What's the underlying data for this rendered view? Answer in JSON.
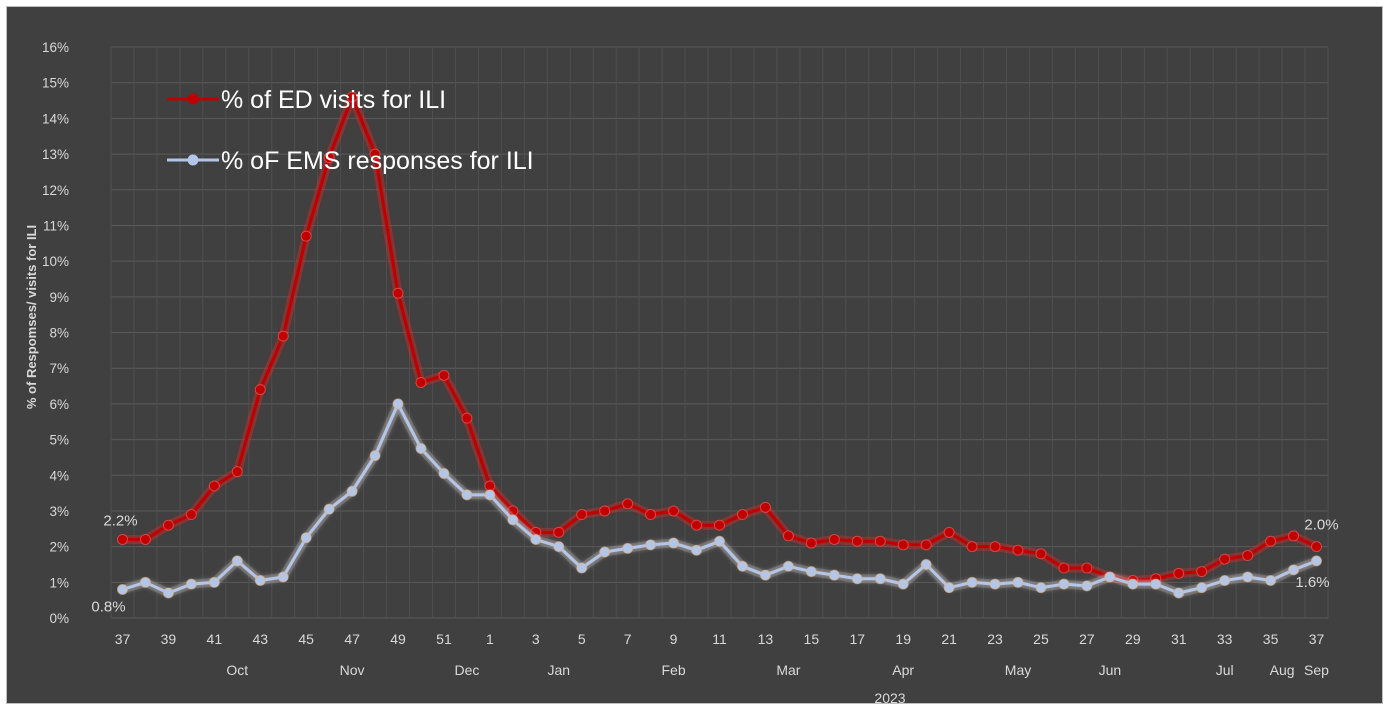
{
  "chart_data": {
    "type": "line",
    "title": "",
    "ylabel": "% of Respomses/ visits for ILI",
    "year_label": "2023",
    "ylim": [
      0,
      16
    ],
    "y_ticks": [
      "0%",
      "1%",
      "2%",
      "3%",
      "4%",
      "5%",
      "6%",
      "7%",
      "8%",
      "9%",
      "10%",
      "11%",
      "12%",
      "13%",
      "14%",
      "15%",
      "16%"
    ],
    "grid": true,
    "legend_placement": "top-left",
    "x": [
      37,
      38,
      39,
      40,
      41,
      42,
      43,
      44,
      45,
      46,
      47,
      48,
      49,
      50,
      51,
      52,
      1,
      2,
      3,
      4,
      5,
      6,
      7,
      8,
      9,
      10,
      11,
      12,
      13,
      14,
      15,
      16,
      17,
      18,
      19,
      20,
      21,
      22,
      23,
      24,
      25,
      26,
      27,
      28,
      29,
      30,
      31,
      32,
      33,
      34,
      35,
      36,
      37
    ],
    "x_tick_labels": [
      "37",
      "39",
      "41",
      "43",
      "45",
      "47",
      "49",
      "51",
      "1",
      "3",
      "5",
      "7",
      "9",
      "11",
      "13",
      "15",
      "17",
      "19",
      "21",
      "23",
      "25",
      "27",
      "29",
      "31",
      "33",
      "35",
      "37"
    ],
    "months": [
      {
        "label": "Oct",
        "at": 5
      },
      {
        "label": "Nov",
        "at": 10
      },
      {
        "label": "Dec",
        "at": 15
      },
      {
        "label": "Jan",
        "at": 19
      },
      {
        "label": "Feb",
        "at": 24
      },
      {
        "label": "Mar",
        "at": 29
      },
      {
        "label": "Apr",
        "at": 34
      },
      {
        "label": "May",
        "at": 39
      },
      {
        "label": "Jun",
        "at": 43
      },
      {
        "label": "Jul",
        "at": 48
      },
      {
        "label": "Aug",
        "at": 50.5
      },
      {
        "label": "Sep",
        "at": 52
      }
    ],
    "series": [
      {
        "name": "% of ED visits for ILI",
        "color": "#c00000",
        "glow": "#ff6666",
        "values": [
          2.2,
          2.2,
          2.6,
          2.9,
          3.7,
          4.1,
          6.4,
          7.9,
          10.7,
          12.9,
          14.6,
          13.0,
          9.1,
          6.6,
          6.8,
          5.6,
          3.7,
          3.0,
          2.4,
          2.4,
          2.9,
          3.0,
          3.2,
          2.9,
          3.0,
          2.6,
          2.6,
          2.9,
          3.1,
          2.3,
          2.1,
          2.2,
          2.15,
          2.15,
          2.05,
          2.05,
          2.4,
          2.0,
          2.0,
          1.9,
          1.8,
          1.4,
          1.4,
          1.15,
          1.05,
          1.1,
          1.25,
          1.3,
          1.65,
          1.75,
          2.15,
          2.3,
          2.0
        ],
        "labels": [
          {
            "index": 0,
            "text": "2.2%"
          },
          {
            "index": 52,
            "text": "2.0%"
          }
        ]
      },
      {
        "name": "% oF EMS responses for ILI",
        "color": "#b4c6e7",
        "glow": "#e2b07a",
        "values": [
          0.8,
          1.0,
          0.7,
          0.95,
          1.0,
          1.6,
          1.05,
          1.15,
          2.25,
          3.05,
          3.55,
          4.55,
          6.0,
          4.75,
          4.05,
          3.45,
          3.45,
          2.75,
          2.2,
          2.0,
          1.4,
          1.85,
          1.95,
          2.05,
          2.1,
          1.9,
          2.15,
          1.45,
          1.2,
          1.45,
          1.3,
          1.2,
          1.1,
          1.1,
          0.95,
          1.5,
          0.85,
          1.0,
          0.95,
          1.0,
          0.85,
          0.95,
          0.9,
          1.15,
          0.95,
          0.95,
          0.7,
          0.85,
          1.05,
          1.15,
          1.05,
          1.35,
          1.6
        ],
        "labels": [
          {
            "index": 0,
            "text": "0.8%"
          },
          {
            "index": 52,
            "text": "1.6%"
          }
        ]
      }
    ]
  }
}
